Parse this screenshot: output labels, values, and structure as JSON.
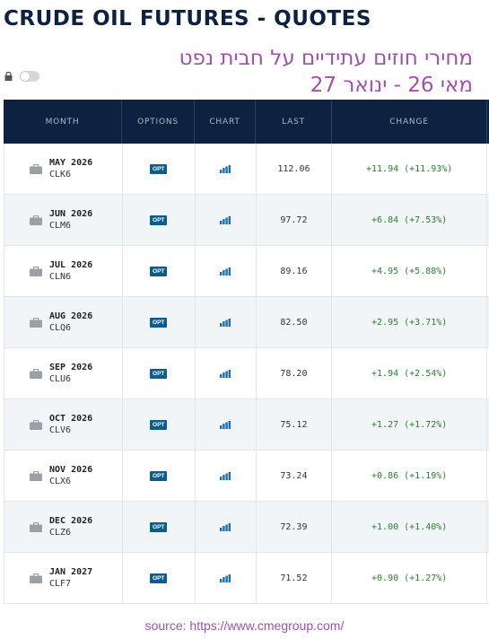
{
  "page": {
    "title": "CRUDE OIL FUTURES - QUOTES",
    "hebrew_line1": "מחירי חוזים עתידיים על חבית נפט",
    "hebrew_line2": "מאי 26 - ינואר 27",
    "source": "source: https://www.cmegroup.com/"
  },
  "table": {
    "headers": {
      "month": "MONTH",
      "options": "OPTIONS",
      "chart": "CHART",
      "last": "LAST",
      "change": "CHANGE"
    },
    "rows": [
      {
        "month": "MAY 2026",
        "code": "CLK6",
        "opt": "OPT",
        "last": "112.06",
        "change": "+11.94 (+11.93%)"
      },
      {
        "month": "JUN 2026",
        "code": "CLM6",
        "opt": "OPT",
        "last": "97.72",
        "change": "+6.84 (+7.53%)"
      },
      {
        "month": "JUL 2026",
        "code": "CLN6",
        "opt": "OPT",
        "last": "89.16",
        "change": "+4.95 (+5.88%)"
      },
      {
        "month": "AUG 2026",
        "code": "CLQ6",
        "opt": "OPT",
        "last": "82.50",
        "change": "+2.95 (+3.71%)"
      },
      {
        "month": "SEP 2026",
        "code": "CLU6",
        "opt": "OPT",
        "last": "78.20",
        "change": "+1.94 (+2.54%)"
      },
      {
        "month": "OCT 2026",
        "code": "CLV6",
        "opt": "OPT",
        "last": "75.12",
        "change": "+1.27 (+1.72%)"
      },
      {
        "month": "NOV 2026",
        "code": "CLX6",
        "opt": "OPT",
        "last": "73.24",
        "change": "+0.86 (+1.19%)"
      },
      {
        "month": "DEC 2026",
        "code": "CLZ6",
        "opt": "OPT",
        "last": "72.39",
        "change": "+1.00 (+1.40%)"
      },
      {
        "month": "JAN 2027",
        "code": "CLF7",
        "opt": "OPT",
        "last": "71.52",
        "change": "+0.90 (+1.27%)"
      }
    ]
  },
  "icons": {
    "lock": "lock-icon",
    "toggle": "toggle-switch",
    "row_icon": "briefcase-icon",
    "chart": "bar-chart-icon"
  },
  "colors": {
    "header_bg": "#0d2240",
    "hebrew_text": "#a34fb0",
    "change_positive": "#2e7d32",
    "opt_badge": "#0a5d8e"
  }
}
